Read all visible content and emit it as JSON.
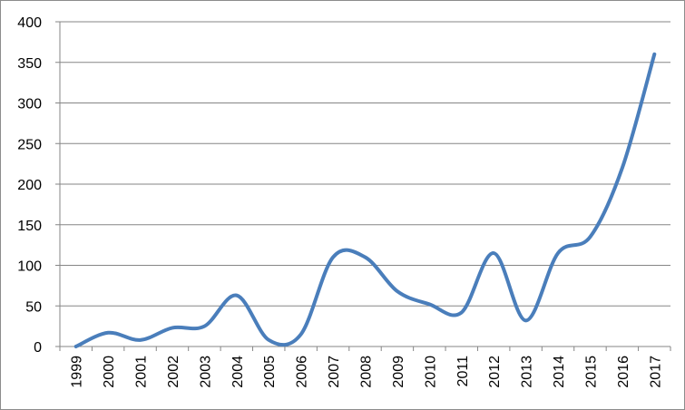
{
  "chart_data": {
    "type": "line",
    "title": "",
    "xlabel": "",
    "ylabel": "",
    "categories": [
      "1999",
      "2000",
      "2001",
      "2002",
      "2003",
      "2004",
      "2005",
      "2006",
      "2007",
      "2008",
      "2009",
      "2010",
      "2011",
      "2012",
      "2013",
      "2014",
      "2015",
      "2016",
      "2017"
    ],
    "series": [
      {
        "values": [
          0,
          17,
          8,
          23,
          25,
          63,
          8,
          15,
          110,
          110,
          68,
          52,
          42,
          115,
          32,
          115,
          135,
          220,
          360
        ]
      }
    ],
    "ylim": [
      0,
      400
    ],
    "yticks": [
      "0",
      "50",
      "100",
      "150",
      "200",
      "250",
      "300",
      "350",
      "400"
    ],
    "grid": true,
    "legend": "none",
    "colors": {
      "line": "#4a7ebb",
      "grid": "#868686",
      "axis": "#868686"
    }
  }
}
